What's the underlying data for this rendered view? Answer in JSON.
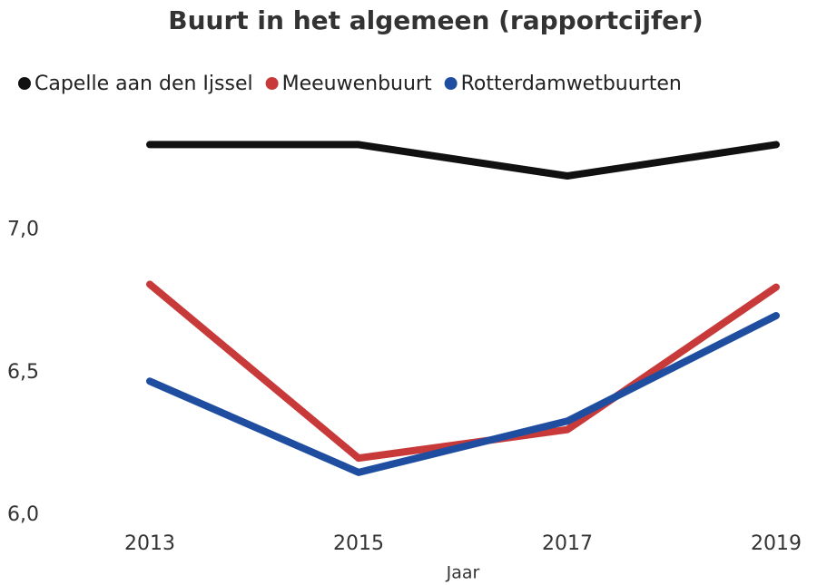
{
  "chart_data": {
    "type": "line",
    "title": "Buurt in het algemeen (rapportcijfer)",
    "x_label": "Jaar",
    "categories": [
      "2013",
      "2015",
      "2017",
      "2019"
    ],
    "series": [
      {
        "name": "Capelle aan den Ijssel",
        "color": "#111111",
        "values": [
          7.3,
          7.3,
          7.19,
          7.3
        ]
      },
      {
        "name": "Meeuwenbuurt",
        "color": "#c83a3a",
        "values": [
          6.81,
          6.2,
          6.3,
          6.8
        ]
      },
      {
        "name": "Rotterdamwetbuurten",
        "color": "#1f4ea0",
        "values": [
          6.47,
          6.15,
          6.33,
          6.7
        ]
      }
    ],
    "ylim": [
      6.0,
      7.4
    ],
    "yticks": [
      {
        "value": 6.0,
        "label": "6,0"
      },
      {
        "value": 6.5,
        "label": "6,5"
      },
      {
        "value": 7.0,
        "label": "7,0"
      }
    ],
    "grid": false,
    "legend": "top"
  }
}
